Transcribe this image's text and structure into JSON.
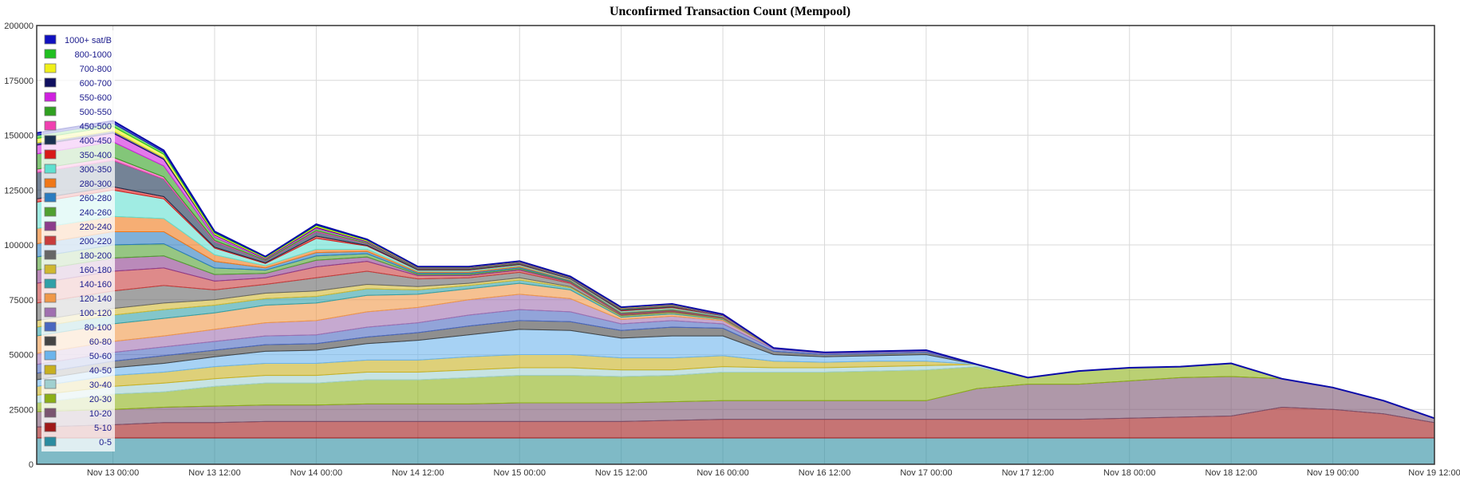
{
  "chart_data": {
    "type": "area",
    "stacked": true,
    "title": "Unconfirmed Transaction Count (Mempool)",
    "xlabel": "",
    "ylabel": "",
    "x_range": [
      "2023-11-12 15:00",
      "2023-11-19 12:00"
    ],
    "ylim": [
      0,
      200000
    ],
    "y_ticks": [
      0,
      25000,
      50000,
      75000,
      100000,
      125000,
      150000,
      175000,
      200000
    ],
    "x_ticks": [
      "2023-11-13 00:00",
      "2023-11-13 12:00",
      "2023-11-14 00:00",
      "2023-11-14 12:00",
      "2023-11-15 00:00",
      "2023-11-15 12:00",
      "2023-11-16 00:00",
      "2023-11-16 12:00",
      "2023-11-17 00:00",
      "2023-11-17 12:00",
      "2023-11-18 00:00",
      "2023-11-18 12:00",
      "2023-11-19 00:00",
      "2023-11-19 12:00"
    ],
    "x_tick_labels": [
      "Nov 13 00:00",
      "Nov 13 12:00",
      "Nov 14 00:00",
      "Nov 14 12:00",
      "Nov 15 00:00",
      "Nov 15 12:00",
      "Nov 16 00:00",
      "Nov 16 12:00",
      "Nov 17 00:00",
      "Nov 17 12:00",
      "Nov 18 00:00",
      "Nov 18 12:00",
      "Nov 19 00:00",
      "Nov 19 12:00"
    ],
    "grid": true,
    "legend_position": "top-left",
    "total_line_color": "#0a0aa8",
    "x": [
      "2023-11-12 15:00",
      "2023-11-13 00:00",
      "2023-11-13 06:00",
      "2023-11-13 12:00",
      "2023-11-13 18:00",
      "2023-11-14 00:00",
      "2023-11-14 06:00",
      "2023-11-14 12:00",
      "2023-11-14 18:00",
      "2023-11-15 00:00",
      "2023-11-15 06:00",
      "2023-11-15 12:00",
      "2023-11-15 18:00",
      "2023-11-16 00:00",
      "2023-11-16 06:00",
      "2023-11-16 12:00",
      "2023-11-16 18:00",
      "2023-11-17 00:00",
      "2023-11-17 06:00",
      "2023-11-17 12:00",
      "2023-11-17 18:00",
      "2023-11-18 00:00",
      "2023-11-18 06:00",
      "2023-11-18 12:00",
      "2023-11-18 18:00",
      "2023-11-19 00:00",
      "2023-11-19 06:00",
      "2023-11-19 12:00"
    ],
    "series": [
      {
        "name": "0-5",
        "color": "#2a8ca0",
        "values": [
          12000,
          12000,
          12000,
          12000,
          12000,
          12000,
          12000,
          12000,
          12000,
          12000,
          12000,
          12000,
          12000,
          12000,
          12000,
          12000,
          12000,
          12000,
          12000,
          12000,
          12000,
          12000,
          12000,
          12000,
          12000,
          12000,
          12000,
          12000
        ]
      },
      {
        "name": "5-10",
        "color": "#a01818",
        "values": [
          5000,
          6000,
          7000,
          7000,
          7500,
          7500,
          7500,
          7500,
          7500,
          7500,
          7500,
          7500,
          8000,
          8500,
          8500,
          8500,
          8500,
          8500,
          8500,
          8500,
          8500,
          9000,
          9500,
          10000,
          14000,
          13000,
          11000,
          7000
        ]
      },
      {
        "name": "10-20",
        "color": "#7a5470",
        "values": [
          7000,
          7000,
          7000,
          7500,
          7500,
          7500,
          8000,
          8000,
          8000,
          8500,
          8500,
          8500,
          8500,
          8500,
          8500,
          8500,
          8500,
          8500,
          14000,
          16000,
          16000,
          17000,
          18000,
          18000,
          13000,
          10000,
          6000,
          2000
        ]
      },
      {
        "name": "20-30",
        "color": "#8cb016",
        "values": [
          4000,
          7000,
          7000,
          9000,
          10000,
          10000,
          11000,
          11000,
          12000,
          12500,
          12500,
          12000,
          12000,
          13000,
          13000,
          13000,
          13500,
          14000,
          10000,
          3000,
          6000,
          6000,
          5000,
          6000,
          0,
          0,
          0,
          0
        ]
      },
      {
        "name": "30-40",
        "color": "#a0d0d0",
        "values": [
          3500,
          3500,
          4000,
          3500,
          3500,
          3500,
          3500,
          3500,
          3500,
          3500,
          3500,
          3000,
          2500,
          2500,
          2000,
          2000,
          2000,
          2000,
          1000,
          0,
          0,
          0,
          0,
          0,
          0,
          0,
          0,
          0
        ]
      },
      {
        "name": "40-50",
        "color": "#c8b020",
        "values": [
          4000,
          5000,
          5000,
          5500,
          5500,
          5500,
          5500,
          5500,
          6000,
          6000,
          6000,
          5500,
          5500,
          5000,
          3000,
          2500,
          2500,
          2000,
          0,
          0,
          0,
          0,
          0,
          0,
          0,
          0,
          0,
          0
        ]
      },
      {
        "name": "50-60",
        "color": "#6cb4ec",
        "values": [
          3000,
          3500,
          4000,
          4500,
          5500,
          6000,
          7500,
          9000,
          10000,
          11500,
          11000,
          9000,
          10000,
          9000,
          3000,
          2500,
          2500,
          3000,
          0,
          0,
          0,
          0,
          0,
          0,
          0,
          0,
          0,
          0
        ]
      },
      {
        "name": "60-80",
        "color": "#444444",
        "values": [
          3000,
          3000,
          3500,
          3000,
          3000,
          3000,
          3000,
          3500,
          4000,
          4000,
          4000,
          3500,
          4000,
          3500,
          1500,
          1000,
          1000,
          1000,
          0,
          0,
          0,
          0,
          0,
          0,
          0,
          0,
          0,
          0
        ]
      },
      {
        "name": "80-100",
        "color": "#4a68c0",
        "values": [
          4000,
          4000,
          4000,
          4000,
          4000,
          4000,
          4500,
          4500,
          5000,
          5000,
          4500,
          3000,
          3000,
          2000,
          1000,
          500,
          500,
          500,
          0,
          0,
          0,
          0,
          0,
          0,
          0,
          0,
          0,
          0
        ]
      },
      {
        "name": "100-120",
        "color": "#a070b0",
        "values": [
          5000,
          5000,
          5000,
          5500,
          6000,
          6500,
          7000,
          7000,
          7000,
          7000,
          6000,
          2000,
          2000,
          1500,
          500,
          500,
          500,
          500,
          0,
          0,
          0,
          0,
          0,
          0,
          0,
          0,
          0,
          0
        ]
      },
      {
        "name": "120-140",
        "color": "#f09848",
        "values": [
          8000,
          8000,
          8000,
          7500,
          8000,
          8000,
          7500,
          6000,
          5000,
          5000,
          4000,
          1000,
          1000,
          500,
          0,
          0,
          0,
          0,
          0,
          0,
          0,
          0,
          0,
          0,
          0,
          0,
          0,
          0
        ]
      },
      {
        "name": "140-160",
        "color": "#30a0a8",
        "values": [
          4000,
          4000,
          4000,
          3500,
          3000,
          3000,
          3000,
          2000,
          1500,
          1500,
          1000,
          500,
          500,
          300,
          0,
          0,
          0,
          0,
          0,
          0,
          0,
          0,
          0,
          0,
          0,
          0,
          0,
          0
        ]
      },
      {
        "name": "160-180",
        "color": "#d0b830",
        "values": [
          3000,
          3000,
          3000,
          2500,
          2500,
          2500,
          2000,
          1500,
          1000,
          1000,
          500,
          300,
          300,
          200,
          0,
          0,
          0,
          0,
          0,
          0,
          0,
          0,
          0,
          0,
          0,
          0,
          0,
          0
        ]
      },
      {
        "name": "180-200",
        "color": "#666666",
        "values": [
          8000,
          8000,
          8000,
          4500,
          4000,
          6000,
          6000,
          3500,
          2500,
          2500,
          1500,
          500,
          500,
          300,
          0,
          0,
          0,
          0,
          0,
          0,
          0,
          0,
          0,
          0,
          0,
          0,
          0,
          0
        ]
      },
      {
        "name": "200-220",
        "color": "#c83c3c",
        "values": [
          9000,
          9000,
          8000,
          4000,
          3000,
          5000,
          4500,
          1500,
          1000,
          1000,
          500,
          300,
          300,
          200,
          0,
          0,
          0,
          0,
          0,
          0,
          0,
          0,
          0,
          0,
          0,
          0,
          0,
          0
        ]
      },
      {
        "name": "220-240",
        "color": "#8c3c8c",
        "values": [
          6000,
          6000,
          5500,
          3000,
          2000,
          3000,
          2000,
          500,
          500,
          500,
          300,
          200,
          200,
          100,
          0,
          0,
          0,
          0,
          0,
          0,
          0,
          0,
          0,
          0,
          0,
          0,
          0,
          0
        ]
      },
      {
        "name": "240-260",
        "color": "#50a030",
        "values": [
          6000,
          6000,
          5500,
          3000,
          1500,
          2000,
          1500,
          500,
          500,
          500,
          300,
          200,
          200,
          100,
          0,
          0,
          0,
          0,
          0,
          0,
          0,
          0,
          0,
          0,
          0,
          0,
          0,
          0
        ]
      },
      {
        "name": "260-280",
        "color": "#2a7cc0",
        "values": [
          6000,
          6000,
          5500,
          3000,
          1000,
          1500,
          1000,
          500,
          500,
          500,
          300,
          200,
          200,
          100,
          0,
          0,
          0,
          0,
          0,
          0,
          0,
          0,
          0,
          0,
          0,
          0,
          0,
          0
        ]
      },
      {
        "name": "280-300",
        "color": "#f07818",
        "values": [
          7000,
          7000,
          6000,
          3000,
          1000,
          1500,
          1000,
          500,
          500,
          500,
          300,
          200,
          200,
          100,
          0,
          0,
          0,
          0,
          0,
          0,
          0,
          0,
          0,
          0,
          0,
          0,
          0,
          0
        ]
      },
      {
        "name": "300-350",
        "color": "#60e0d0",
        "values": [
          12000,
          12000,
          9000,
          3000,
          1000,
          5000,
          1500,
          500,
          500,
          500,
          300,
          500,
          500,
          300,
          0,
          0,
          0,
          0,
          0,
          0,
          0,
          0,
          0,
          0,
          0,
          0,
          0,
          0
        ]
      },
      {
        "name": "350-400",
        "color": "#d81818",
        "values": [
          1500,
          1500,
          1000,
          500,
          300,
          1000,
          300,
          200,
          200,
          200,
          100,
          300,
          300,
          100,
          0,
          0,
          0,
          0,
          0,
          0,
          0,
          0,
          0,
          0,
          0,
          0,
          0,
          0
        ]
      },
      {
        "name": "400-450",
        "color": "#183050",
        "values": [
          12000,
          12000,
          8000,
          2500,
          1000,
          2000,
          800,
          300,
          300,
          300,
          200,
          300,
          300,
          100,
          0,
          0,
          0,
          0,
          0,
          0,
          0,
          0,
          0,
          0,
          0,
          0,
          0,
          0
        ]
      },
      {
        "name": "450-500",
        "color": "#f040b0",
        "values": [
          1500,
          1500,
          1000,
          500,
          200,
          500,
          200,
          100,
          100,
          100,
          100,
          100,
          100,
          50,
          0,
          0,
          0,
          0,
          0,
          0,
          0,
          0,
          0,
          0,
          0,
          0,
          0,
          0
        ]
      },
      {
        "name": "500-550",
        "color": "#30a020",
        "values": [
          7000,
          7000,
          5000,
          1500,
          500,
          1000,
          500,
          300,
          300,
          300,
          200,
          300,
          300,
          100,
          0,
          0,
          0,
          0,
          0,
          0,
          0,
          0,
          0,
          0,
          0,
          0,
          0,
          0
        ]
      },
      {
        "name": "550-600",
        "color": "#d020e0",
        "values": [
          4000,
          4000,
          3000,
          1000,
          300,
          500,
          300,
          200,
          200,
          200,
          100,
          200,
          200,
          100,
          0,
          0,
          0,
          0,
          0,
          0,
          0,
          0,
          0,
          0,
          0,
          0,
          0,
          0
        ]
      },
      {
        "name": "600-700",
        "color": "#101060",
        "values": [
          1000,
          1000,
          800,
          300,
          200,
          300,
          200,
          100,
          100,
          100,
          100,
          100,
          100,
          50,
          0,
          0,
          0,
          0,
          0,
          0,
          0,
          0,
          0,
          0,
          0,
          0,
          0,
          0
        ]
      },
      {
        "name": "700-800",
        "color": "#f0f018",
        "values": [
          2000,
          2000,
          1500,
          500,
          300,
          500,
          300,
          200,
          200,
          200,
          100,
          200,
          200,
          100,
          0,
          0,
          0,
          0,
          0,
          0,
          0,
          0,
          0,
          0,
          0,
          0,
          0,
          0
        ]
      },
      {
        "name": "800-1000",
        "color": "#20c020",
        "values": [
          1500,
          1500,
          1000,
          500,
          200,
          300,
          200,
          100,
          100,
          100,
          100,
          100,
          100,
          50,
          0,
          0,
          0,
          0,
          0,
          0,
          0,
          0,
          0,
          0,
          0,
          0,
          0,
          0
        ]
      },
      {
        "name": "1000+ sat/B",
        "color": "#1010c0",
        "values": [
          1000,
          1000,
          800,
          300,
          200,
          300,
          200,
          100,
          100,
          100,
          100,
          100,
          100,
          50,
          0,
          0,
          0,
          0,
          0,
          0,
          0,
          0,
          0,
          0,
          0,
          0,
          0,
          0
        ]
      }
    ]
  }
}
